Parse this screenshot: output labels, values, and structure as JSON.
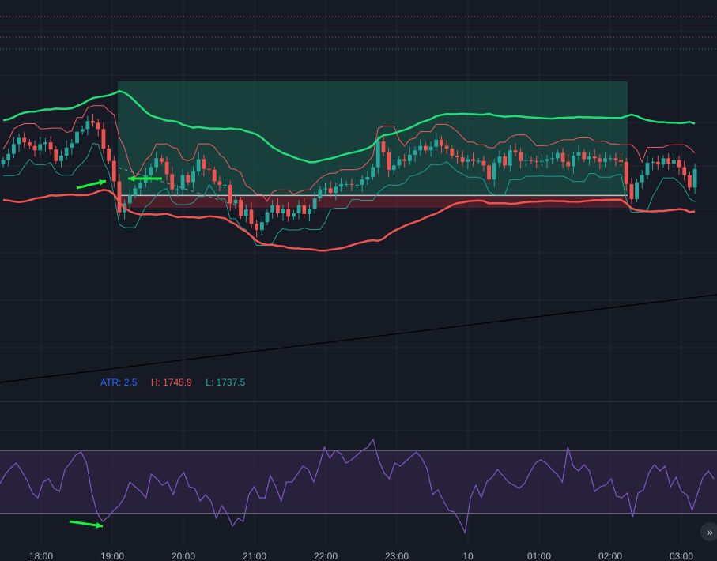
{
  "colors": {
    "background": "#161a25",
    "grid": "#232734",
    "bull": "#26a69a",
    "bear": "#ef5350",
    "upper_band": "#22dd77",
    "lower_band": "#f0524f",
    "channel_high": "#f05a5a",
    "channel_low": "#1a9e8e",
    "rsi_line": "#7e57c2",
    "axis_text": "#b2b5be"
  },
  "legend": {
    "atr_label": "ATR: 2.5",
    "high_label": "H: 1745.9",
    "low_label": "L: 1737.5",
    "atr_color": "#2962ff",
    "high_color": "#ef5350",
    "low_color": "#26a69a"
  },
  "icons": {
    "scroll": "double-chevron-right-icon",
    "scroll_glyph": "»"
  },
  "chart_data": {
    "type": "candlestick",
    "x_ticks": [
      "18:00",
      "19:00",
      "20:00",
      "21:00",
      "22:00",
      "23:00",
      "10",
      "01:00",
      "02:00",
      "03:00"
    ],
    "price_range": [
      1723,
      1756
    ],
    "target_zone": [
      1737.5,
      1745.9
    ],
    "stop_zone": [
      1733.4,
      1737.5
    ],
    "candles_close": [
      1741.5,
      1742.2,
      1743.3,
      1744,
      1743.5,
      1743.1,
      1742.6,
      1743.3,
      1743.5,
      1742.7,
      1741.4,
      1742,
      1742.9,
      1743.4,
      1744.7,
      1745,
      1745.9,
      1745.7,
      1745,
      1742.8,
      1741.4,
      1739.1,
      1735.6,
      1736.6,
      1737.5,
      1738.3,
      1738.9,
      1739.8,
      1740.7,
      1741.7,
      1741.3,
      1739.9,
      1738.2,
      1738.2,
      1739.8,
      1739,
      1740.2,
      1741.6,
      1740.5,
      1740.4,
      1739.1,
      1738.7,
      1738.7,
      1736.6,
      1737,
      1735.2,
      1735.9,
      1734.3,
      1733.6,
      1734.5,
      1735.6,
      1736.4,
      1735.5,
      1736,
      1735.1,
      1735.5,
      1736.4,
      1735.4,
      1736,
      1737.2,
      1738.2,
      1738.3,
      1737.8,
      1738.5,
      1738.8,
      1738.8,
      1738.7,
      1738.7,
      1739.3,
      1739.6,
      1740.7,
      1743.6,
      1742.4,
      1740.4,
      1740.9,
      1741.6,
      1741.4,
      1742.1,
      1742.6,
      1743.1,
      1742.6,
      1743,
      1743.8,
      1743.1,
      1742.8,
      1742,
      1741.8,
      1741.3,
      1741.6,
      1741.4,
      1741.4,
      1740.9,
      1739.3,
      1741.2,
      1741.9,
      1740.9,
      1742.6,
      1742.4,
      1741.4,
      1741.5,
      1741.4,
      1741.3,
      1741.4,
      1741.6,
      1741.7,
      1742.3,
      1741.3,
      1740.8,
      1742,
      1742.4,
      1741.6,
      1741.9,
      1741.7,
      1741.3,
      1741.7,
      1741.7,
      1741.5,
      1741.3,
      1738.8,
      1737.1,
      1739,
      1739.8,
      1741.2,
      1741.3,
      1741,
      1741.7,
      1741.1,
      1741.5,
      1740.7,
      1739.8,
      1738.4,
      1740.5
    ],
    "series": [
      {
        "kind": "rsi",
        "range": [
          15,
          85
        ],
        "overbought": 70,
        "oversold": 30,
        "values": [
          49,
          55,
          59,
          62,
          57,
          51,
          43,
          40,
          50,
          52,
          46,
          44,
          58,
          62,
          67,
          69,
          62,
          43,
          30,
          25,
          28,
          32,
          35,
          40,
          50,
          47,
          44,
          40,
          55,
          52,
          48,
          50,
          42,
          52,
          56,
          47,
          46,
          38,
          42,
          38,
          27,
          35,
          30,
          22,
          27,
          25,
          42,
          47,
          40,
          40,
          54,
          47,
          38,
          50,
          50,
          55,
          60,
          58,
          50,
          60,
          72,
          65,
          70,
          68,
          62,
          64,
          67,
          70,
          72,
          77,
          64,
          56,
          52,
          62,
          60,
          63,
          66,
          69,
          65,
          58,
          42,
          45,
          38,
          32,
          31,
          25,
          18,
          40,
          48,
          40,
          50,
          53,
          58,
          54,
          50,
          48,
          46,
          49,
          56,
          62,
          64,
          62,
          58,
          55,
          50,
          72,
          60,
          57,
          61,
          57,
          44,
          47,
          48,
          52,
          41,
          40,
          43,
          28,
          43,
          45,
          56,
          61,
          57,
          60,
          47,
          53,
          44,
          42,
          32,
          43,
          53,
          57,
          52
        ]
      }
    ]
  }
}
